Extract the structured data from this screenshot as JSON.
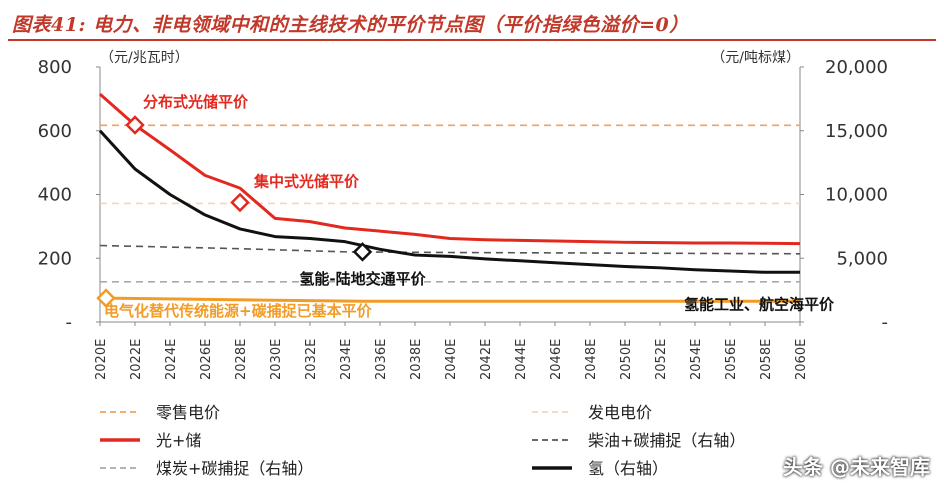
{
  "title": "图表41: 电力、非电领域中和的主线技术的平价节点图（平价指绿色溢价=0）",
  "watermark": "头条 @未来智库",
  "colors": {
    "retail": "#f0a25f",
    "generation": "#f1d6c0",
    "solar_storage": "#e3291f",
    "diesel_ccs": "#555555",
    "coal_ccs": "#aaaaaa",
    "hydrogen": "#111111",
    "orange_band": "#f29c27",
    "accent_red": "#c0392b"
  },
  "chart_data": {
    "type": "line",
    "title": "图表41: 电力、非电领域中和的主线技术的平价节点图（平价指绿色溢价=0）",
    "left_axis": {
      "unit_label": "（元/兆瓦时）",
      "ylim": [
        0,
        800
      ],
      "ticks": [
        "800",
        "600",
        "400",
        "200",
        "-"
      ],
      "tick_values": [
        800,
        600,
        400,
        200,
        0
      ]
    },
    "right_axis": {
      "unit_label": "（元/吨标煤）",
      "ylim": [
        0,
        20000
      ],
      "ticks": [
        "20,000",
        "15,000",
        "10,000",
        "5,000",
        "-"
      ],
      "tick_values": [
        20000,
        15000,
        10000,
        5000,
        0
      ]
    },
    "categories": [
      "2020E",
      "2022E",
      "2024E",
      "2026E",
      "2028E",
      "2030E",
      "2032E",
      "2034E",
      "2036E",
      "2038E",
      "2040E",
      "2042E",
      "2044E",
      "2046E",
      "2048E",
      "2050E",
      "2052E",
      "2054E",
      "2056E",
      "2058E",
      "2060E"
    ],
    "x_values": [
      2020,
      2022,
      2024,
      2026,
      2028,
      2030,
      2032,
      2034,
      2036,
      2038,
      2040,
      2042,
      2044,
      2046,
      2048,
      2050,
      2052,
      2054,
      2056,
      2058,
      2060
    ],
    "series": [
      {
        "name": "零售电价",
        "axis": "left",
        "style": "dashed",
        "color": "#f0a25f",
        "points": [
          [
            2020,
            617
          ],
          [
            2060,
            617
          ]
        ]
      },
      {
        "name": "发电电价",
        "axis": "left",
        "style": "dashed",
        "color": "#f1d6c0",
        "points": [
          [
            2020,
            372
          ],
          [
            2060,
            372
          ]
        ]
      },
      {
        "name": "光+储",
        "axis": "left",
        "style": "solid",
        "color": "#e3291f",
        "points": [
          [
            2020,
            715
          ],
          [
            2022,
            618
          ],
          [
            2024,
            540
          ],
          [
            2026,
            460
          ],
          [
            2028,
            420
          ],
          [
            2030,
            325
          ],
          [
            2032,
            315
          ],
          [
            2034,
            295
          ],
          [
            2036,
            285
          ],
          [
            2038,
            275
          ],
          [
            2040,
            262
          ],
          [
            2042,
            258
          ],
          [
            2044,
            256
          ],
          [
            2046,
            254
          ],
          [
            2048,
            252
          ],
          [
            2050,
            250
          ],
          [
            2052,
            249
          ],
          [
            2054,
            248
          ],
          [
            2056,
            248
          ],
          [
            2058,
            247
          ],
          [
            2060,
            246
          ]
        ]
      },
      {
        "name": "柴油+碳捕捉（右轴）",
        "axis": "right",
        "style": "dashed",
        "color": "#555555",
        "points": [
          [
            2020,
            6000
          ],
          [
            2028,
            5750
          ],
          [
            2034,
            5500
          ],
          [
            2040,
            5450
          ],
          [
            2050,
            5400
          ],
          [
            2060,
            5350
          ]
        ]
      },
      {
        "name": "煤炭+碳捕捉（右轴）",
        "axis": "right",
        "style": "dashed",
        "color": "#aaaaaa",
        "points": [
          [
            2020,
            3150
          ],
          [
            2060,
            3150
          ]
        ]
      },
      {
        "name": "氢（右轴）",
        "axis": "right",
        "style": "solid",
        "color": "#111111",
        "points": [
          [
            2020,
            15000
          ],
          [
            2022,
            12000
          ],
          [
            2024,
            10000
          ],
          [
            2026,
            8400
          ],
          [
            2028,
            7300
          ],
          [
            2030,
            6700
          ],
          [
            2032,
            6550
          ],
          [
            2034,
            6300
          ],
          [
            2036,
            5700
          ],
          [
            2038,
            5250
          ],
          [
            2040,
            5150
          ],
          [
            2042,
            4950
          ],
          [
            2044,
            4800
          ],
          [
            2046,
            4650
          ],
          [
            2048,
            4500
          ],
          [
            2050,
            4350
          ],
          [
            2052,
            4250
          ],
          [
            2054,
            4100
          ],
          [
            2056,
            4000
          ],
          [
            2058,
            3900
          ],
          [
            2060,
            3900
          ]
        ]
      }
    ],
    "orange_band": {
      "points": [
        [
          2020,
          75
        ],
        [
          2035,
          65
        ],
        [
          2060,
          65
        ]
      ],
      "color": "#f29c27"
    },
    "annotations": [
      {
        "text": "分布式光储平价",
        "year": 2022,
        "value": 618,
        "axis": "left",
        "color": "#e3291f"
      },
      {
        "text": "集中式光储平价",
        "year": 2028,
        "value": 375,
        "axis": "left",
        "color": "#e3291f"
      },
      {
        "text": "氢能-陆地交通平价",
        "year": 2035,
        "value": 5500,
        "axis": "right",
        "color": "#111111"
      },
      {
        "text": "电气化替代传统能源+碳捕捉已基本平价",
        "year": 2020,
        "value": 75,
        "axis": "left",
        "color": "#f29c27"
      },
      {
        "text": "氢能工业、航空海平价",
        "year": 2060,
        "value": 65,
        "axis": "left",
        "color": "#111111"
      }
    ],
    "legend": [
      {
        "label": "零售电价",
        "style": "dashed",
        "color": "#f0a25f"
      },
      {
        "label": "发电电价",
        "style": "dashed",
        "color": "#f1d6c0"
      },
      {
        "label": "光+储",
        "style": "solid",
        "color": "#e3291f"
      },
      {
        "label": "柴油+碳捕捉（右轴）",
        "style": "dashed",
        "color": "#555555"
      },
      {
        "label": "煤炭+碳捕捉（右轴）",
        "style": "dashed",
        "color": "#aaaaaa"
      },
      {
        "label": "氢（右轴）",
        "style": "solid",
        "color": "#111111"
      }
    ],
    "legend_placement": "bottom",
    "grid": false
  }
}
